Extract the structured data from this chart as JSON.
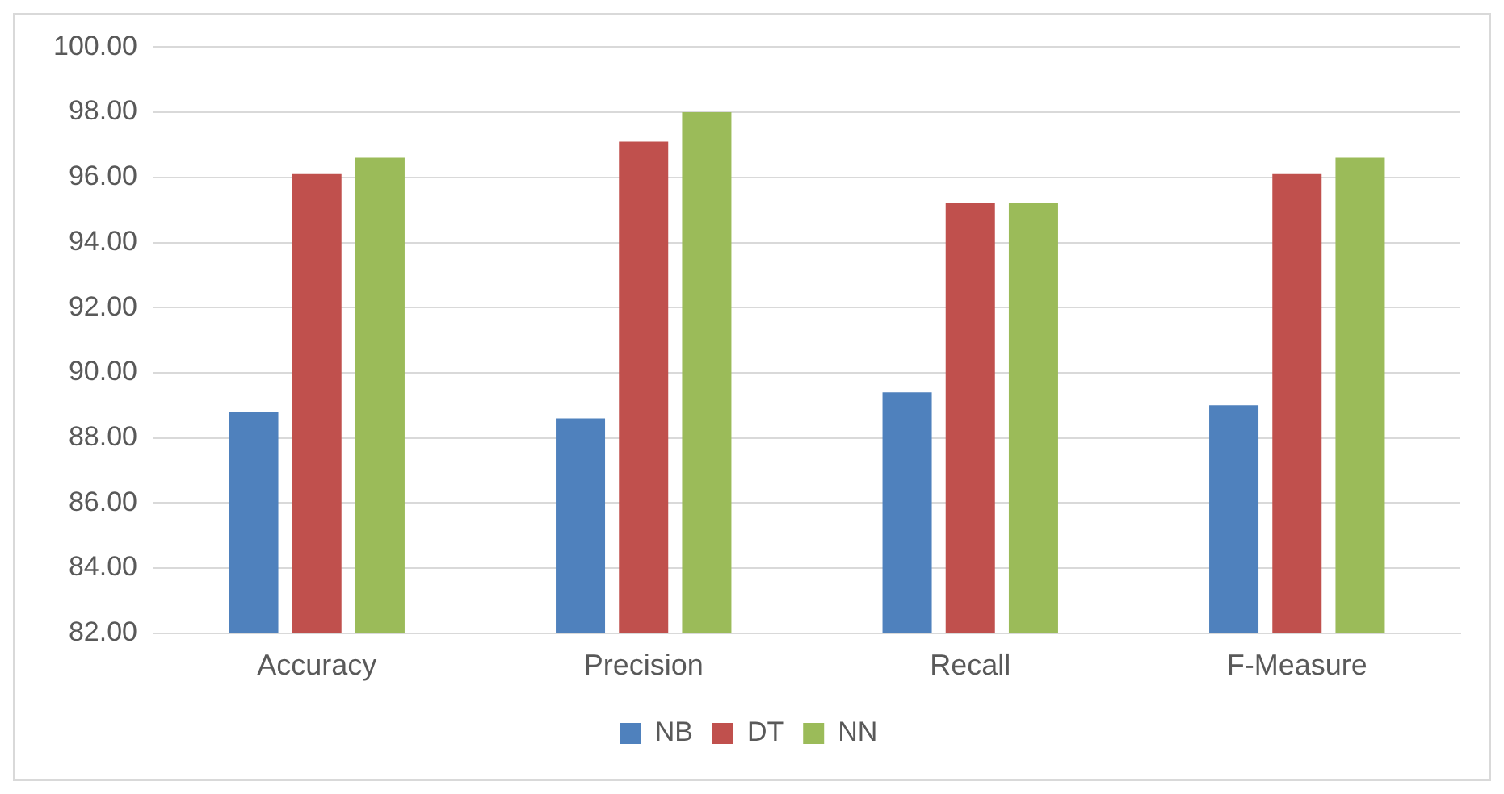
{
  "chart_data": {
    "type": "bar",
    "categories": [
      "Accuracy",
      "Precision",
      "Recall",
      "F-Measure"
    ],
    "series": [
      {
        "name": "NB",
        "color": "#4f81bd",
        "values": [
          88.8,
          88.6,
          89.4,
          89.0
        ]
      },
      {
        "name": "DT",
        "color": "#c0504d",
        "values": [
          96.1,
          97.1,
          95.2,
          96.1
        ]
      },
      {
        "name": "NN",
        "color": "#9bbb59",
        "values": [
          96.6,
          98.0,
          95.2,
          96.6
        ]
      }
    ],
    "ylim": [
      82,
      100
    ],
    "yticks": [
      {
        "value": 82,
        "label": "82.00"
      },
      {
        "value": 84,
        "label": "84.00"
      },
      {
        "value": 86,
        "label": "86.00"
      },
      {
        "value": 88,
        "label": "88.00"
      },
      {
        "value": 90,
        "label": "90.00"
      },
      {
        "value": 92,
        "label": "92.00"
      },
      {
        "value": 94,
        "label": "94.00"
      },
      {
        "value": 96,
        "label": "96.00"
      },
      {
        "value": 98,
        "label": "98.00"
      },
      {
        "value": 100,
        "label": "100.00"
      }
    ],
    "grid": "y",
    "legend": "bottom"
  }
}
